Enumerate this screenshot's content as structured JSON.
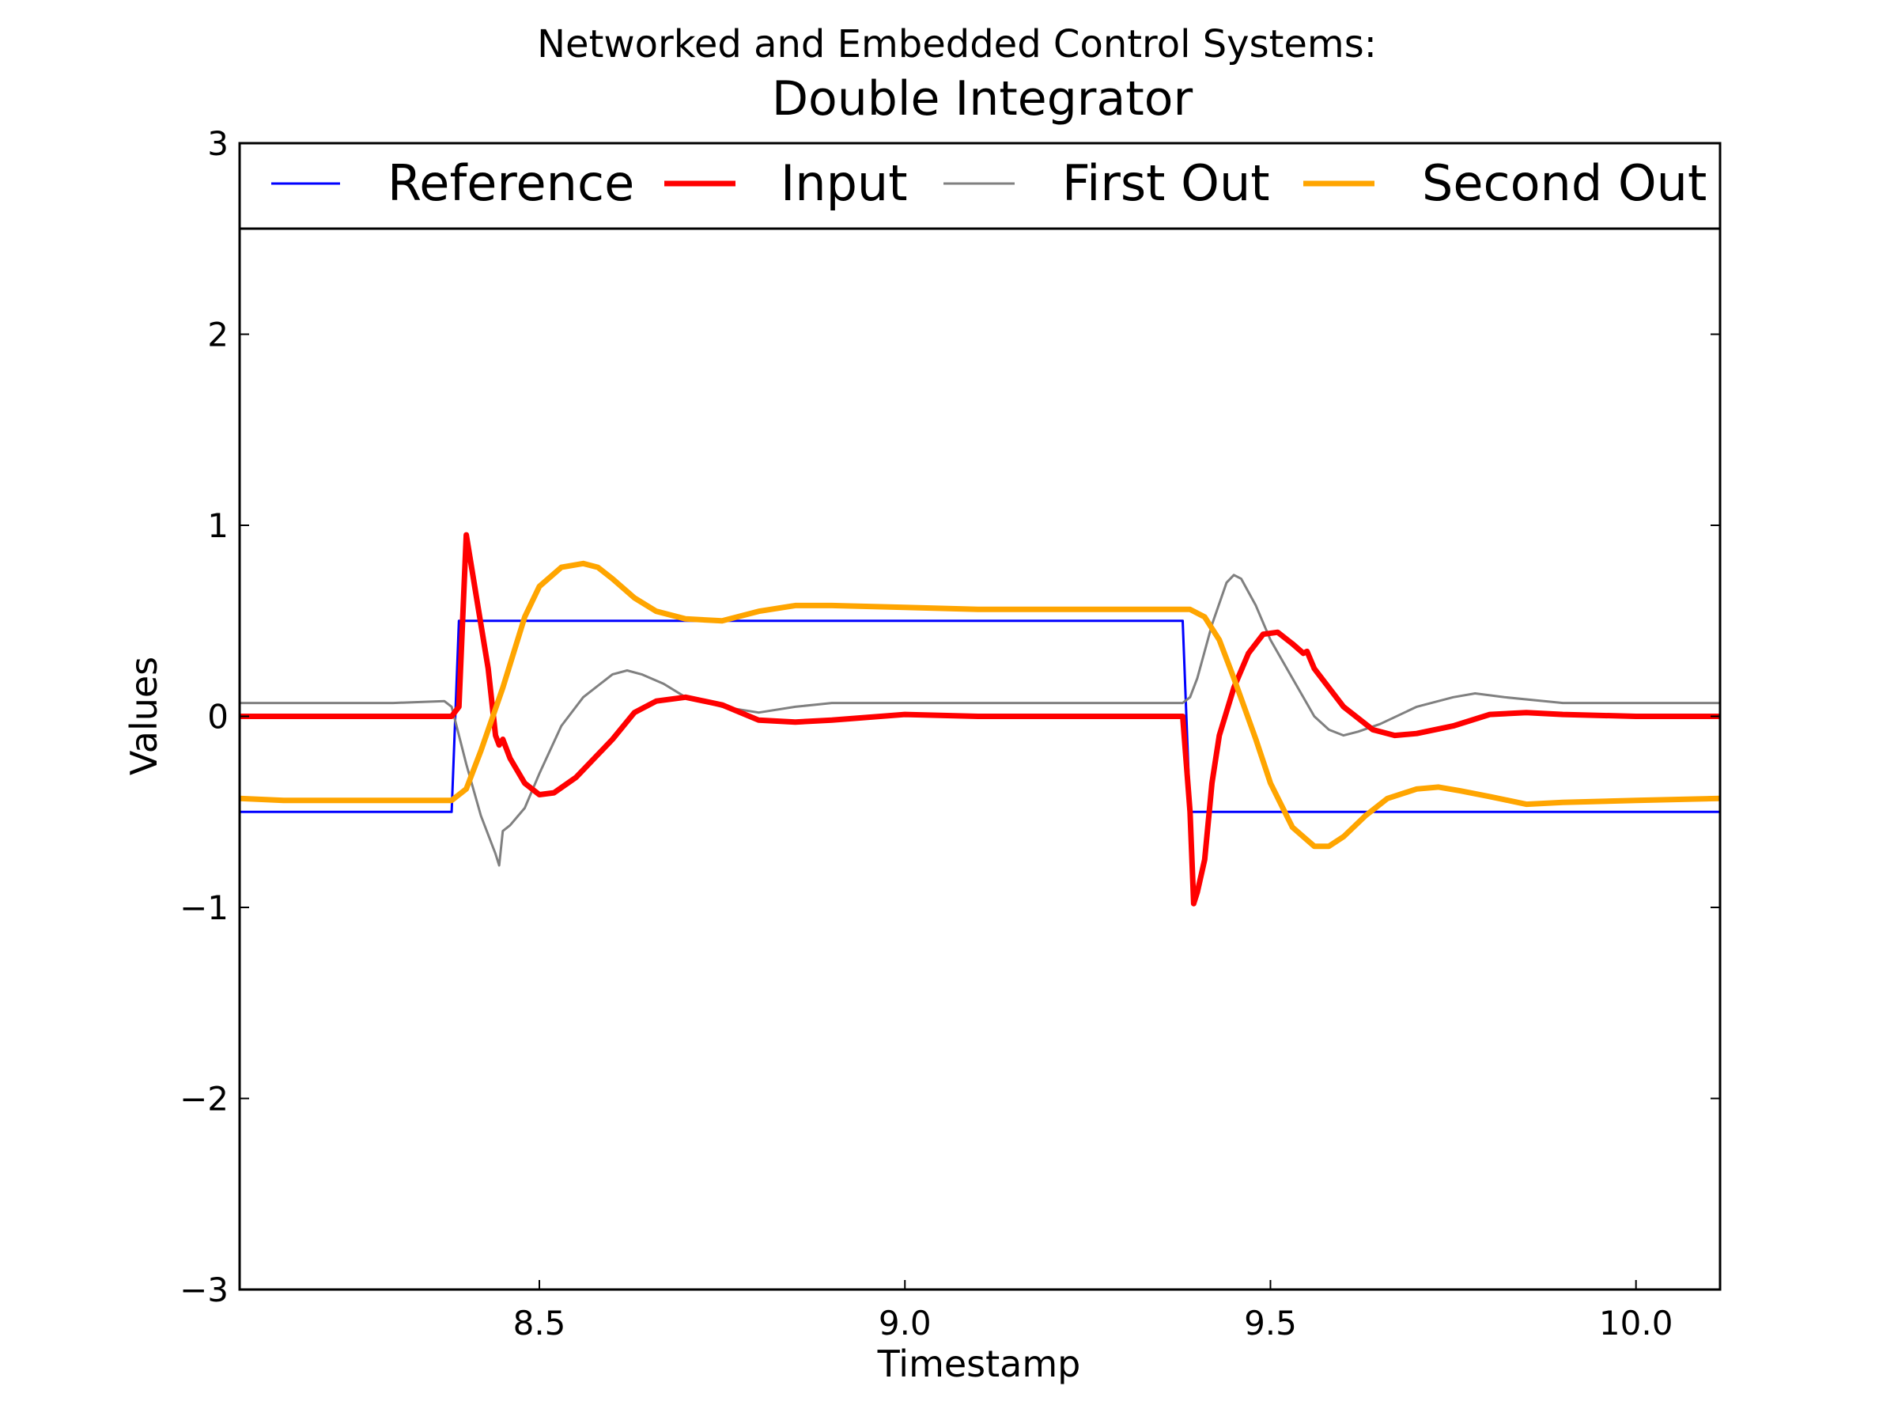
{
  "chart_data": {
    "type": "line",
    "suptitle": "Networked and Embedded Control Systems:",
    "title": "Double Integrator",
    "xlabel": "Timestamp",
    "ylabel": "Values",
    "xlim": [
      8.09,
      10.115
    ],
    "ylim": [
      -3,
      3
    ],
    "xticks": [
      8.5,
      9.0,
      9.5,
      10.0
    ],
    "xtick_labels": [
      "8.5",
      "9.0",
      "9.5",
      "10.0"
    ],
    "yticks": [
      -3,
      -2,
      -1,
      0,
      1,
      2,
      3
    ],
    "ytick_labels": [
      "−3",
      "−2",
      "−1",
      "0",
      "1",
      "2",
      "3"
    ],
    "grid": false,
    "legend_position": "top",
    "series": [
      {
        "name": "Reference",
        "color": "#0000ff",
        "x": [
          8.09,
          8.38,
          8.39,
          9.38,
          9.39,
          10.115
        ],
        "y": [
          -0.5,
          -0.5,
          0.5,
          0.5,
          -0.5,
          -0.5
        ]
      },
      {
        "name": "Input",
        "color": "#ff0000",
        "x": [
          8.09,
          8.15,
          8.2,
          8.25,
          8.3,
          8.35,
          8.38,
          8.39,
          8.4,
          8.415,
          8.43,
          8.44,
          8.445,
          8.45,
          8.46,
          8.48,
          8.5,
          8.52,
          8.55,
          8.6,
          8.63,
          8.66,
          8.7,
          8.75,
          8.8,
          8.85,
          8.9,
          9.0,
          9.1,
          9.2,
          9.3,
          9.38,
          9.39,
          9.395,
          9.4,
          9.41,
          9.42,
          9.43,
          9.45,
          9.47,
          9.49,
          9.51,
          9.53,
          9.545,
          9.55,
          9.56,
          9.6,
          9.64,
          9.67,
          9.7,
          9.75,
          9.8,
          9.85,
          9.9,
          10.0,
          10.115
        ],
        "y": [
          0.0,
          0.0,
          0.0,
          0.0,
          0.0,
          0.0,
          0.0,
          0.05,
          0.95,
          0.6,
          0.25,
          -0.1,
          -0.15,
          -0.12,
          -0.22,
          -0.35,
          -0.41,
          -0.4,
          -0.32,
          -0.12,
          0.02,
          0.08,
          0.1,
          0.06,
          -0.02,
          -0.03,
          -0.02,
          0.01,
          0.0,
          0.0,
          0.0,
          0.0,
          -0.5,
          -0.98,
          -0.92,
          -0.75,
          -0.35,
          -0.1,
          0.15,
          0.33,
          0.43,
          0.44,
          0.38,
          0.33,
          0.34,
          0.25,
          0.05,
          -0.07,
          -0.1,
          -0.09,
          -0.05,
          0.01,
          0.02,
          0.01,
          0.0,
          0.0
        ]
      },
      {
        "name": "First Out",
        "color": "#808080",
        "x": [
          8.09,
          8.2,
          8.3,
          8.37,
          8.38,
          8.4,
          8.42,
          8.44,
          8.445,
          8.45,
          8.46,
          8.48,
          8.5,
          8.53,
          8.56,
          8.6,
          8.62,
          8.64,
          8.67,
          8.7,
          8.75,
          8.8,
          8.85,
          8.9,
          9.0,
          9.1,
          9.2,
          9.3,
          9.38,
          9.39,
          9.4,
          9.42,
          9.44,
          9.45,
          9.46,
          9.48,
          9.5,
          9.53,
          9.56,
          9.58,
          9.6,
          9.62,
          9.65,
          9.7,
          9.75,
          9.78,
          9.82,
          9.9,
          10.0,
          10.115
        ],
        "y": [
          0.07,
          0.07,
          0.07,
          0.08,
          0.05,
          -0.25,
          -0.52,
          -0.72,
          -0.78,
          -0.6,
          -0.57,
          -0.48,
          -0.3,
          -0.05,
          0.1,
          0.22,
          0.24,
          0.22,
          0.17,
          0.1,
          0.05,
          0.02,
          0.05,
          0.07,
          0.07,
          0.07,
          0.07,
          0.07,
          0.07,
          0.1,
          0.2,
          0.48,
          0.7,
          0.74,
          0.72,
          0.58,
          0.4,
          0.2,
          0.0,
          -0.07,
          -0.1,
          -0.08,
          -0.04,
          0.05,
          0.1,
          0.12,
          0.1,
          0.07,
          0.07,
          0.07
        ]
      },
      {
        "name": "Second Out",
        "color": "#ffa500",
        "x": [
          8.09,
          8.15,
          8.2,
          8.25,
          8.3,
          8.35,
          8.38,
          8.4,
          8.42,
          8.45,
          8.48,
          8.5,
          8.53,
          8.56,
          8.58,
          8.6,
          8.63,
          8.66,
          8.7,
          8.75,
          8.8,
          8.85,
          8.9,
          9.0,
          9.1,
          9.2,
          9.3,
          9.38,
          9.39,
          9.41,
          9.43,
          9.45,
          9.48,
          9.5,
          9.53,
          9.56,
          9.58,
          9.6,
          9.63,
          9.66,
          9.7,
          9.73,
          9.76,
          9.8,
          9.85,
          9.9,
          10.0,
          10.115
        ],
        "y": [
          -0.43,
          -0.44,
          -0.44,
          -0.44,
          -0.44,
          -0.44,
          -0.44,
          -0.38,
          -0.18,
          0.15,
          0.52,
          0.68,
          0.78,
          0.8,
          0.78,
          0.72,
          0.62,
          0.55,
          0.51,
          0.5,
          0.55,
          0.58,
          0.58,
          0.57,
          0.56,
          0.56,
          0.56,
          0.56,
          0.56,
          0.52,
          0.4,
          0.2,
          -0.12,
          -0.35,
          -0.58,
          -0.68,
          -0.68,
          -0.63,
          -0.52,
          -0.43,
          -0.38,
          -0.37,
          -0.39,
          -0.42,
          -0.46,
          -0.45,
          -0.44,
          -0.43
        ]
      }
    ]
  }
}
